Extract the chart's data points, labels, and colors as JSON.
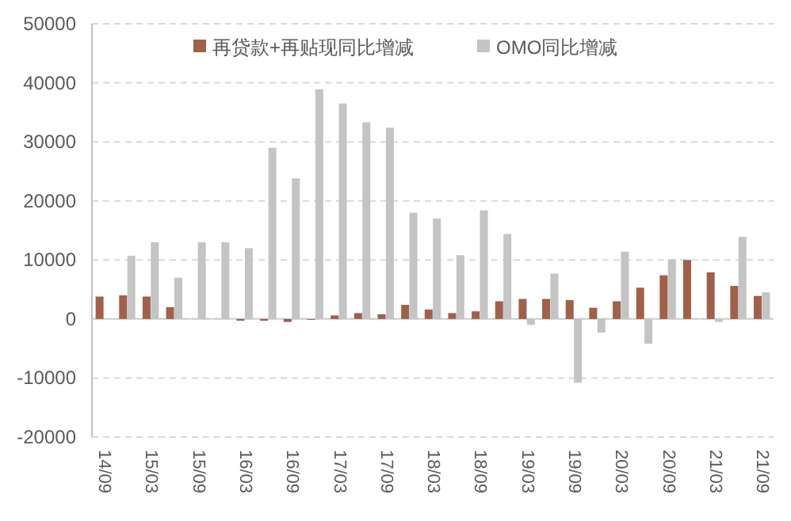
{
  "chart_data": {
    "type": "bar",
    "categories": [
      "14/09",
      null,
      "15/03",
      null,
      "15/09",
      null,
      "16/03",
      null,
      "16/09",
      null,
      "17/03",
      null,
      "17/09",
      null,
      "18/03",
      null,
      "18/09",
      null,
      "19/03",
      null,
      "19/09",
      null,
      "20/03",
      null,
      "20/09",
      null,
      "21/03",
      null,
      "21/09"
    ],
    "series": [
      {
        "name": "再贷款+再贴现同比增减",
        "color": "#a0604a",
        "values": [
          3800,
          4000,
          3800,
          2000,
          null,
          null,
          -300,
          -300,
          -500,
          0,
          600,
          1000,
          800,
          2400,
          1600,
          1000,
          1300,
          3000,
          3400,
          3400,
          3200,
          1900,
          3000,
          5300,
          7400,
          10000,
          7900,
          5600,
          3900
        ]
      },
      {
        "name": "OMO同比增减",
        "color": "#c4c4c4",
        "values": [
          null,
          10700,
          13000,
          7000,
          13000,
          13000,
          12000,
          29000,
          23800,
          38900,
          36500,
          33300,
          32400,
          18000,
          17000,
          10800,
          18400,
          14400,
          -1000,
          7700,
          -10800,
          -2300,
          11400,
          -4200,
          10100,
          null,
          -500,
          13900,
          4500
        ]
      }
    ],
    "ylim": [
      -20000,
      50000
    ],
    "yticks": [
      -20000,
      -10000,
      0,
      10000,
      20000,
      30000,
      40000,
      50000
    ],
    "grid": "y",
    "legend": "top"
  }
}
